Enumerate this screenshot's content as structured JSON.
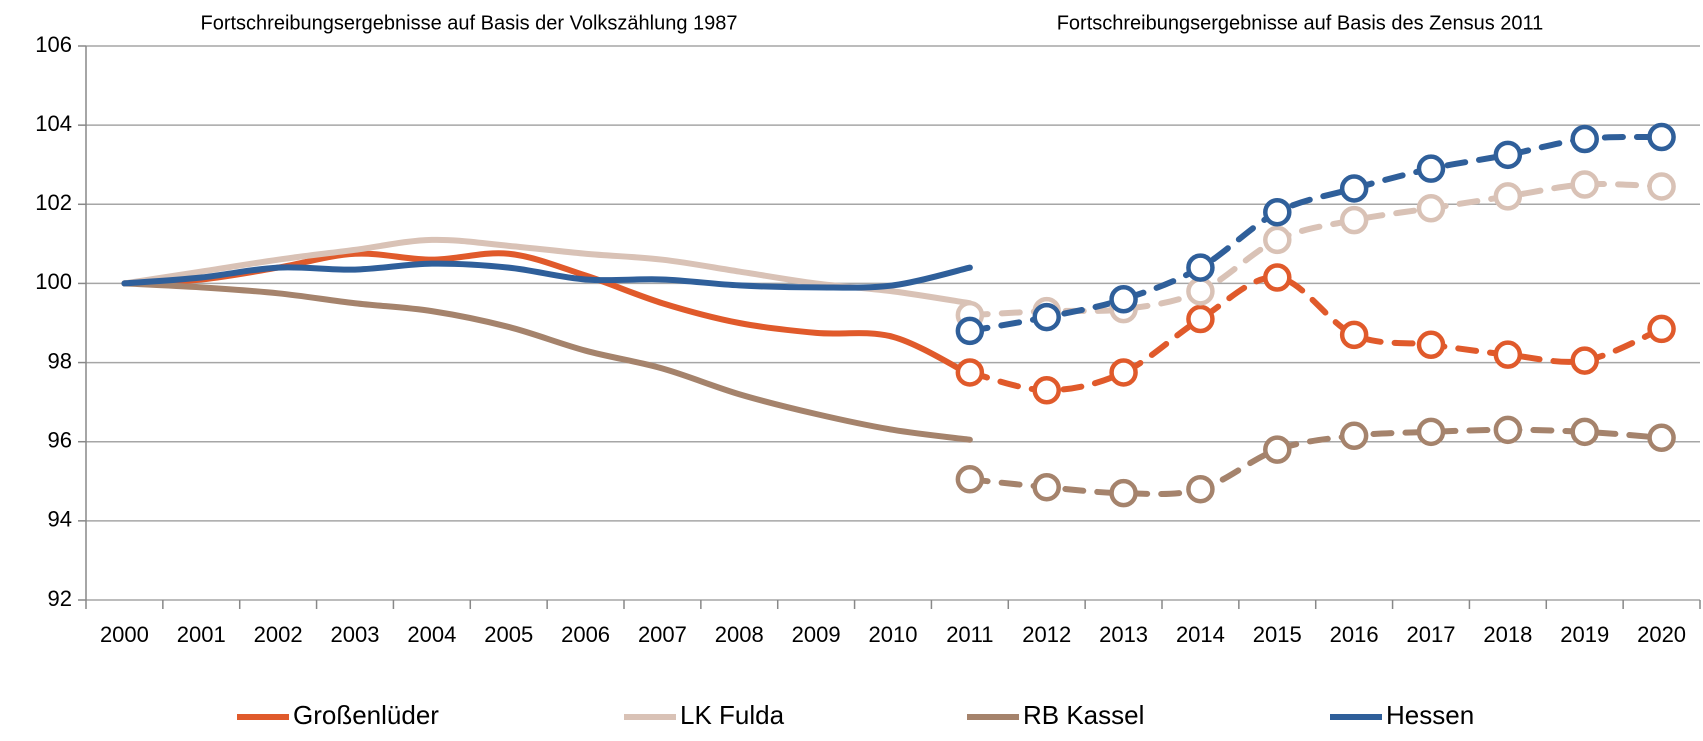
{
  "chart_data": {
    "type": "line",
    "annotations": [
      "Fortschreibungsergebnisse auf Basis der Volkszählung 1987",
      "Fortschreibungsergebnisse auf Basis des Zensus 2011"
    ],
    "categories": [
      "2000",
      "2001",
      "2002",
      "2003",
      "2004",
      "2005",
      "2006",
      "2007",
      "2008",
      "2009",
      "2010",
      "2011",
      "2012",
      "2013",
      "2014",
      "2015",
      "2016",
      "2017",
      "2018",
      "2019",
      "2020"
    ],
    "ylim": [
      92,
      106
    ],
    "yticks": [
      92,
      94,
      96,
      98,
      100,
      102,
      104,
      106
    ],
    "grid": true,
    "series": [
      {
        "name": "Großenlüder",
        "color": "#e05a2b",
        "values": [
          100,
          100.1,
          100.4,
          100.75,
          100.6,
          100.75,
          100.2,
          99.5,
          99.0,
          98.75,
          98.65,
          97.7,
          null,
          null,
          null,
          null,
          null,
          null,
          null,
          null,
          null
        ],
        "values_zensus": [
          null,
          null,
          null,
          null,
          null,
          null,
          null,
          null,
          null,
          null,
          null,
          97.75,
          97.3,
          97.75,
          99.1,
          100.15,
          98.7,
          98.45,
          98.2,
          98.05,
          98.85
        ]
      },
      {
        "name": "LK Fulda",
        "color": "#d9c2b6",
        "values": [
          100,
          100.3,
          100.6,
          100.85,
          101.1,
          100.95,
          100.75,
          100.6,
          100.3,
          100.0,
          99.8,
          99.5,
          null,
          null,
          null,
          null,
          null,
          null,
          null,
          null,
          null
        ],
        "values_zensus": [
          null,
          null,
          null,
          null,
          null,
          null,
          null,
          null,
          null,
          null,
          null,
          99.2,
          99.3,
          99.35,
          99.8,
          101.1,
          101.6,
          101.9,
          102.2,
          102.5,
          102.45
        ]
      },
      {
        "name": "RB Kassel",
        "color": "#a5836c",
        "values": [
          100,
          99.9,
          99.75,
          99.5,
          99.3,
          98.9,
          98.3,
          97.85,
          97.2,
          96.7,
          96.3,
          96.05,
          null,
          null,
          null,
          null,
          null,
          null,
          null,
          null,
          null
        ],
        "values_zensus": [
          null,
          null,
          null,
          null,
          null,
          null,
          null,
          null,
          null,
          null,
          null,
          95.05,
          94.85,
          94.7,
          94.8,
          95.8,
          96.15,
          96.25,
          96.3,
          96.25,
          96.1
        ]
      },
      {
        "name": "Hessen",
        "color": "#2f5f9a",
        "values": [
          100,
          100.15,
          100.4,
          100.35,
          100.5,
          100.4,
          100.1,
          100.1,
          99.95,
          99.9,
          99.95,
          100.4,
          null,
          null,
          null,
          null,
          null,
          null,
          null,
          null,
          null
        ],
        "values_zensus": [
          null,
          null,
          null,
          null,
          null,
          null,
          null,
          null,
          null,
          null,
          null,
          98.8,
          99.15,
          99.6,
          100.4,
          101.8,
          102.4,
          102.9,
          103.25,
          103.65,
          103.7
        ]
      }
    ]
  }
}
